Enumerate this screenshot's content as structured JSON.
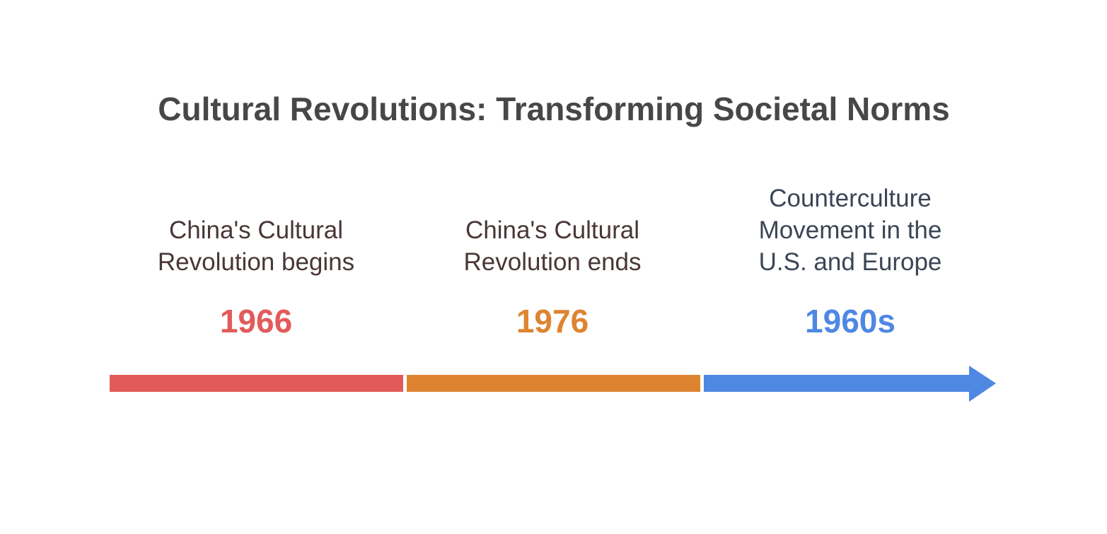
{
  "title": "Cultural Revolutions: Transforming Societal Norms",
  "events": [
    {
      "label_lines": [
        "China's Cultural",
        "Revolution begins"
      ],
      "year": "1966",
      "color": "#e35a5a",
      "text_color": "#4a3636"
    },
    {
      "label_lines": [
        "China's Cultural",
        "Revolution ends"
      ],
      "year": "1976",
      "color": "#de8431",
      "text_color": "#4a3636"
    },
    {
      "label_lines": [
        "Counterculture",
        "Movement in the",
        "U.S. and Europe"
      ],
      "year": "1960s",
      "color": "#4f88e3",
      "text_color": "#3a4556"
    }
  ]
}
